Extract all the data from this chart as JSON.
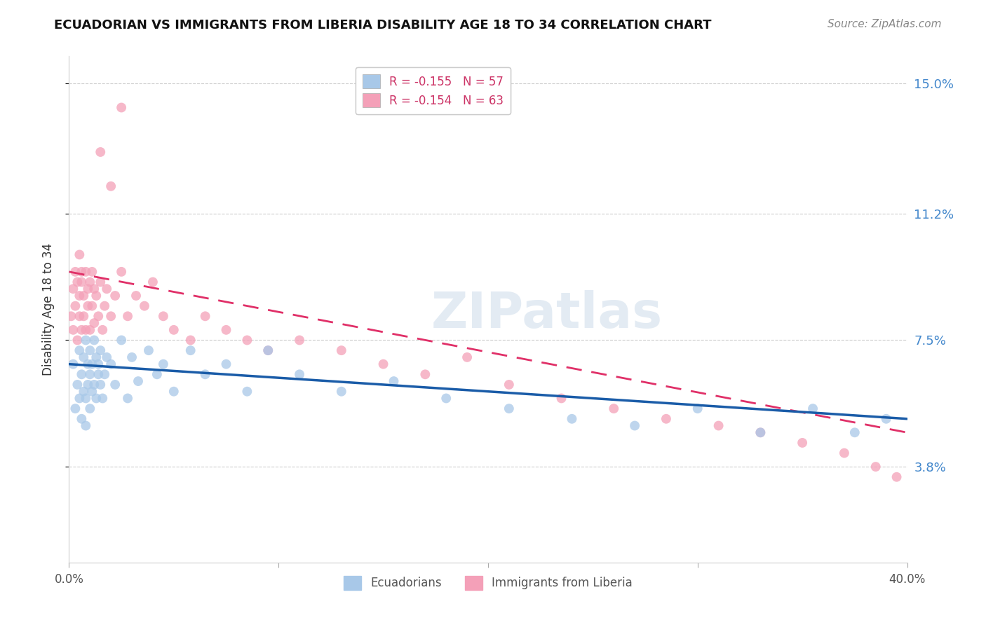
{
  "title": "ECUADORIAN VS IMMIGRANTS FROM LIBERIA DISABILITY AGE 18 TO 34 CORRELATION CHART",
  "source": "Source: ZipAtlas.com",
  "ylabel": "Disability Age 18 to 34",
  "xlim": [
    0.0,
    0.4
  ],
  "ylim": [
    0.01,
    0.158
  ],
  "xtick_vals": [
    0.0,
    0.1,
    0.2,
    0.3,
    0.4
  ],
  "xtick_labels": [
    "0.0%",
    "",
    "",
    "",
    "40.0%"
  ],
  "ytick_vals": [
    0.038,
    0.075,
    0.112,
    0.15
  ],
  "ytick_labels": [
    "3.8%",
    "7.5%",
    "11.2%",
    "15.0%"
  ],
  "series1_label": "Ecuadorians",
  "series2_label": "Immigrants from Liberia",
  "series1_color": "#a8c8e8",
  "series2_color": "#f4a0b8",
  "series1_line_color": "#1a5ca8",
  "series2_line_color": "#e03068",
  "background_color": "#ffffff",
  "watermark": "ZIPatlas",
  "ecuadorians_x": [
    0.002,
    0.003,
    0.004,
    0.005,
    0.005,
    0.006,
    0.006,
    0.007,
    0.007,
    0.008,
    0.008,
    0.008,
    0.009,
    0.009,
    0.01,
    0.01,
    0.01,
    0.011,
    0.011,
    0.012,
    0.012,
    0.013,
    0.013,
    0.014,
    0.014,
    0.015,
    0.015,
    0.016,
    0.017,
    0.018,
    0.02,
    0.022,
    0.025,
    0.028,
    0.03,
    0.033,
    0.038,
    0.042,
    0.045,
    0.05,
    0.058,
    0.065,
    0.075,
    0.085,
    0.095,
    0.11,
    0.13,
    0.155,
    0.18,
    0.21,
    0.24,
    0.27,
    0.3,
    0.33,
    0.355,
    0.375,
    0.39
  ],
  "ecuadorians_y": [
    0.068,
    0.055,
    0.062,
    0.072,
    0.058,
    0.065,
    0.052,
    0.07,
    0.06,
    0.075,
    0.058,
    0.05,
    0.068,
    0.062,
    0.072,
    0.065,
    0.055,
    0.068,
    0.06,
    0.075,
    0.062,
    0.07,
    0.058,
    0.065,
    0.068,
    0.062,
    0.072,
    0.058,
    0.065,
    0.07,
    0.068,
    0.062,
    0.075,
    0.058,
    0.07,
    0.063,
    0.072,
    0.065,
    0.068,
    0.06,
    0.072,
    0.065,
    0.068,
    0.06,
    0.072,
    0.065,
    0.06,
    0.063,
    0.058,
    0.055,
    0.052,
    0.05,
    0.055,
    0.048,
    0.055,
    0.048,
    0.052
  ],
  "liberia_x": [
    0.001,
    0.002,
    0.002,
    0.003,
    0.003,
    0.004,
    0.004,
    0.005,
    0.005,
    0.005,
    0.006,
    0.006,
    0.006,
    0.007,
    0.007,
    0.008,
    0.008,
    0.009,
    0.009,
    0.01,
    0.01,
    0.011,
    0.011,
    0.012,
    0.012,
    0.013,
    0.014,
    0.015,
    0.016,
    0.017,
    0.018,
    0.02,
    0.022,
    0.025,
    0.028,
    0.032,
    0.036,
    0.04,
    0.045,
    0.05,
    0.058,
    0.065,
    0.075,
    0.085,
    0.095,
    0.11,
    0.13,
    0.15,
    0.17,
    0.19,
    0.21,
    0.235,
    0.26,
    0.285,
    0.31,
    0.33,
    0.35,
    0.37,
    0.385,
    0.395,
    0.015,
    0.02,
    0.025
  ],
  "liberia_y": [
    0.082,
    0.09,
    0.078,
    0.095,
    0.085,
    0.092,
    0.075,
    0.1,
    0.088,
    0.082,
    0.095,
    0.078,
    0.092,
    0.088,
    0.082,
    0.095,
    0.078,
    0.09,
    0.085,
    0.092,
    0.078,
    0.095,
    0.085,
    0.09,
    0.08,
    0.088,
    0.082,
    0.092,
    0.078,
    0.085,
    0.09,
    0.082,
    0.088,
    0.095,
    0.082,
    0.088,
    0.085,
    0.092,
    0.082,
    0.078,
    0.075,
    0.082,
    0.078,
    0.075,
    0.072,
    0.075,
    0.072,
    0.068,
    0.065,
    0.07,
    0.062,
    0.058,
    0.055,
    0.052,
    0.05,
    0.048,
    0.045,
    0.042,
    0.038,
    0.035,
    0.13,
    0.12,
    0.143
  ]
}
